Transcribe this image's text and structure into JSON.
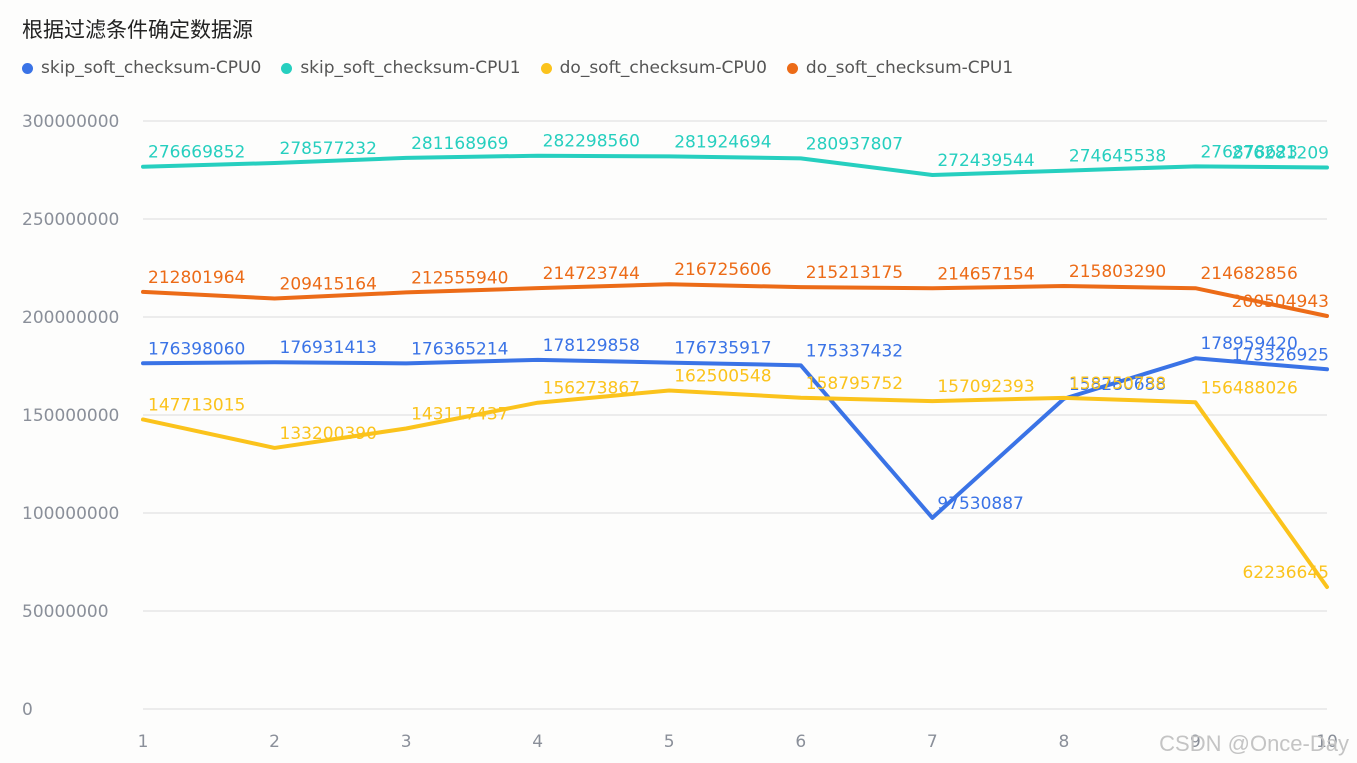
{
  "chart_data": {
    "type": "line",
    "title": "根据过滤条件确定数据源",
    "xlabel": "",
    "ylabel": "",
    "x": [
      "1",
      "2",
      "3",
      "4",
      "5",
      "6",
      "7",
      "8",
      "9",
      "10"
    ],
    "ylim": [
      0,
      300000000
    ],
    "yticks": [
      "0",
      "50000000",
      "100000000",
      "150000000",
      "200000000",
      "250000000",
      "300000000"
    ],
    "grid": true,
    "legend_position": "top-left",
    "series": [
      {
        "name": "skip_soft_checksum-CPU0",
        "color": "#3a73e6",
        "values": [
          176398060,
          176931413,
          176365214,
          178129858,
          176735917,
          175337432,
          97530887,
          158280688,
          178959420,
          173326925
        ]
      },
      {
        "name": "skip_soft_checksum-CPU1",
        "color": "#26cfbf",
        "values": [
          276669852,
          278577232,
          281168969,
          282298560,
          281924694,
          280937807,
          272439544,
          274645538,
          276878623,
          276281209
        ]
      },
      {
        "name": "do_soft_checksum-CPU0",
        "color": "#fbc31c",
        "values": [
          147713015,
          133200390,
          143117437,
          156273867,
          162500548,
          158795752,
          157092393,
          158750738,
          156488026,
          62236645
        ]
      },
      {
        "name": "do_soft_checksum-CPU1",
        "color": "#ec6b17",
        "values": [
          212801964,
          209415164,
          212555940,
          214723744,
          216725606,
          215213175,
          214657154,
          215803290,
          214682856,
          200504943
        ]
      }
    ]
  },
  "watermark": "CSDN @Once-Day"
}
